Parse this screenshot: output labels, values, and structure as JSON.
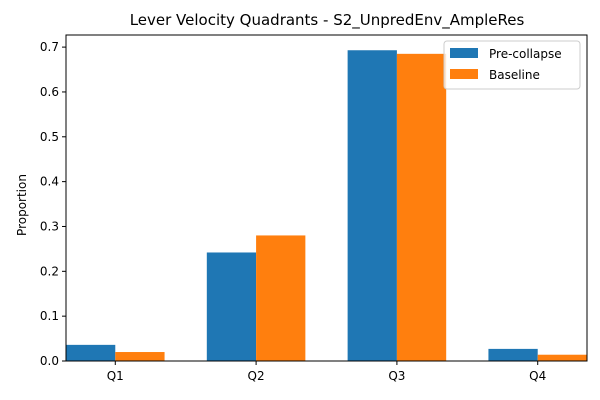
{
  "chart_data": {
    "type": "bar",
    "title": "Lever Velocity Quadrants - S2_UnpredEnv_AmpleRes",
    "xlabel": "",
    "ylabel": "Proportion",
    "categories": [
      "Q1",
      "Q2",
      "Q3",
      "Q4"
    ],
    "series": [
      {
        "name": "Pre-collapse",
        "color": "#1f77b4",
        "values": [
          0.036,
          0.242,
          0.693,
          0.027
        ]
      },
      {
        "name": "Baseline",
        "color": "#ff7f0e",
        "values": [
          0.02,
          0.28,
          0.685,
          0.014
        ]
      }
    ],
    "ylim": [
      0,
      0.727
    ],
    "yticks": [
      "0.0",
      "0.1",
      "0.2",
      "0.3",
      "0.4",
      "0.5",
      "0.6",
      "0.7"
    ],
    "grid": false,
    "legend_position": "top-right"
  }
}
